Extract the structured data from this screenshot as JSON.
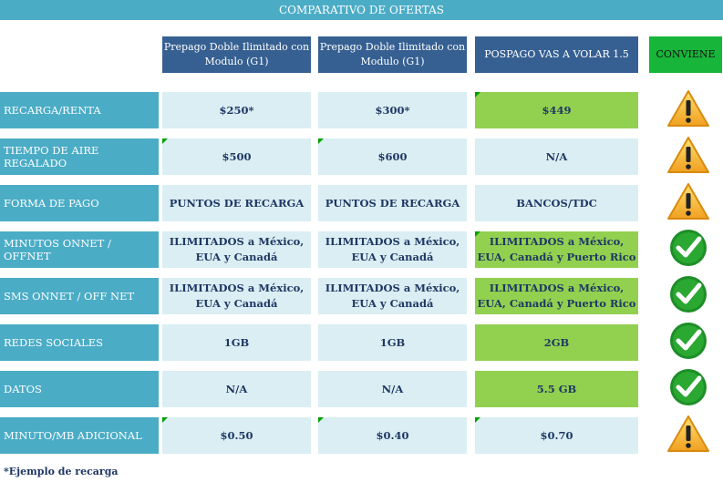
{
  "title": "COMPARATIVO DE OFERTAS",
  "headers": [
    "Prepago Doble Ilimitado con Modulo (G1)",
    "Prepago Doble Ilimitado con Modulo (G1)",
    "POSPAGO VAS A VOLAR 1.5",
    "CONVIENE"
  ],
  "rows": [
    {
      "label": "RECARGA/RENTA",
      "values": [
        "$250*",
        "$300*",
        "$449"
      ],
      "icon": "warning-icon"
    },
    {
      "label": "TIEMPO DE AIRE REGALADO",
      "values": [
        "$500",
        "$600",
        "N/A"
      ],
      "icon": "warning-icon"
    },
    {
      "label": "FORMA DE PAGO",
      "values": [
        "PUNTOS DE RECARGA",
        "PUNTOS DE RECARGA",
        "BANCOS/TDC"
      ],
      "icon": "warning-icon"
    },
    {
      "label": "MINUTOS ONNET / OFFNET",
      "values": [
        "ILIMITADOS a México, EUA y Canadá",
        "ILIMITADOS a México, EUA y Canadá",
        "ILIMITADOS a México, EUA, Canadá y Puerto Rico"
      ],
      "icon": "check-icon"
    },
    {
      "label": "SMS ONNET / OFF NET",
      "values": [
        "ILIMITADOS a México, EUA y Canadá",
        "ILIMITADOS a México, EUA y Canadá",
        "ILIMITADOS a México, EUA, Canadá y Puerto Rico"
      ],
      "icon": "check-icon"
    },
    {
      "label": "REDES SOCIALES",
      "values": [
        "1GB",
        "1GB",
        "2GB"
      ],
      "icon": "check-icon"
    },
    {
      "label": "DATOS",
      "values": [
        "N/A",
        "N/A",
        "5.5 GB"
      ],
      "icon": "check-icon"
    },
    {
      "label": "MINUTO/MB ADICIONAL",
      "values": [
        "$0.50",
        "$0.40",
        "$0.70"
      ],
      "icon": "warning-icon"
    }
  ],
  "footnote": "*Ejemplo de recarga",
  "colors": {
    "header_blue": "#366092",
    "label_teal": "#4bacc6",
    "cell_light": "#daeef3",
    "cell_green": "#92d050",
    "conviene_green": "#17b53a"
  }
}
